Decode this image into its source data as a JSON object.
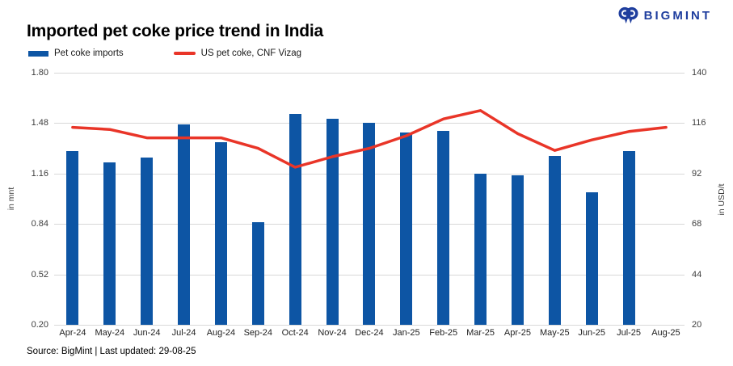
{
  "header": {
    "title": "Imported pet coke price trend in India",
    "brand": "BIGMINT"
  },
  "footer": {
    "source": "Source: BigMint | Last updated: 29-08-25"
  },
  "colors": {
    "bar_blue": "#0D55A4",
    "line_red": "#E93528",
    "brand_navy": "#1F3E9E",
    "gridline": "#D8D8D8",
    "tick_text": "#3d3d3d"
  },
  "chart_data": {
    "type": "combo-bar-line",
    "title": "Imported pet coke price trend in India",
    "categories": [
      "Apr-24",
      "May-24",
      "Jun-24",
      "Jul-24",
      "Aug-24",
      "Sep-24",
      "Oct-24",
      "Nov-24",
      "Dec-24",
      "Jan-25",
      "Feb-25",
      "Mar-25",
      "Apr-25",
      "May-25",
      "Jun-25",
      "Jul-25",
      "Aug-25"
    ],
    "series": [
      {
        "name": "Pet coke imports",
        "type": "bar",
        "axis": "left",
        "unit": "mnt",
        "color": "#0D55A4",
        "values": [
          1.3,
          1.23,
          1.26,
          1.47,
          1.36,
          0.85,
          1.54,
          1.51,
          1.48,
          1.42,
          1.43,
          1.16,
          1.15,
          1.27,
          1.04,
          1.3,
          null
        ]
      },
      {
        "name": "US pet coke, CNF Vizag",
        "type": "line",
        "axis": "right",
        "unit": "USD/t",
        "color": "#E93528",
        "values": [
          114,
          113,
          109,
          109,
          109,
          104,
          95,
          100,
          104,
          110,
          118,
          122,
          111,
          103,
          108,
          112,
          114
        ]
      }
    ],
    "left_axis": {
      "label": "in mnt",
      "min": 0.2,
      "max": 1.8,
      "ticks": [
        "1.80",
        "1.48",
        "1.16",
        "0.84",
        "0.52",
        "0.20"
      ]
    },
    "right_axis": {
      "label": "in USD/t",
      "min": 20,
      "max": 140,
      "ticks": [
        "140",
        "116",
        "92",
        "68",
        "44",
        "20"
      ]
    },
    "grid": true,
    "legend_position": "top-left"
  }
}
